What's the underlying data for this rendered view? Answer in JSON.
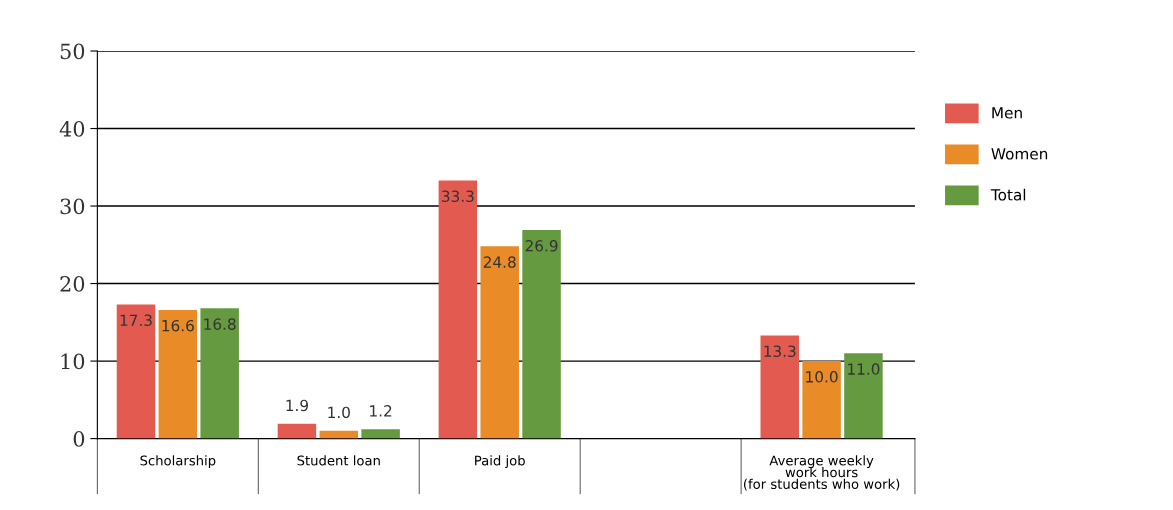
{
  "chart_data": {
    "type": "bar",
    "categories": [
      "Scholarship",
      "Student loan",
      "Paid job",
      null,
      "Average weekly\nwork hours\n(for students who work)"
    ],
    "series": [
      {
        "name": "Men",
        "color": "#e35b50",
        "values": [
          17.3,
          1.9,
          33.3,
          null,
          13.3
        ],
        "value_labels": [
          "17.3",
          "1.9",
          "33.3",
          null,
          "13.3"
        ]
      },
      {
        "name": "Women",
        "color": "#e98b26",
        "values": [
          16.6,
          1.0,
          24.8,
          null,
          10.0
        ],
        "value_labels": [
          "16.6",
          "1.0",
          "24.8",
          null,
          "10.0"
        ]
      },
      {
        "name": "Total",
        "color": "#669a40",
        "values": [
          16.8,
          1.2,
          26.9,
          null,
          11.0
        ],
        "value_labels": [
          "16.8",
          "1.2",
          "26.9",
          null,
          "11.0"
        ]
      }
    ],
    "ylim": [
      0,
      50
    ],
    "yticks": [
      0,
      10,
      20,
      30,
      40,
      50
    ],
    "grid": "y",
    "legend": "right"
  }
}
